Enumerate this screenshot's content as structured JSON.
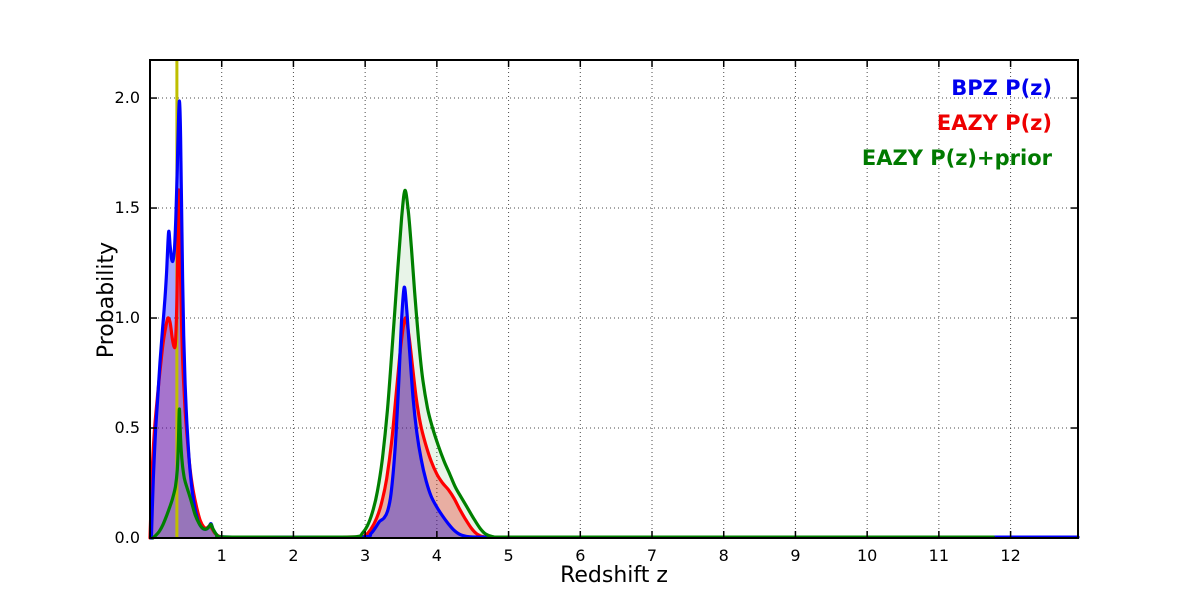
{
  "chart_data": {
    "type": "area",
    "title": "",
    "xlabel": "Redshift z",
    "ylabel": "Probability",
    "x_range": [
      0,
      12.94
    ],
    "y_range": [
      0,
      2.173
    ],
    "x_ticks": [
      "1",
      "2",
      "3",
      "4",
      "5",
      "6",
      "7",
      "8",
      "9",
      "10",
      "11",
      "12"
    ],
    "y_ticks": [
      "0.0",
      "0.5",
      "1.0",
      "1.5",
      "2.0"
    ],
    "grid": true,
    "grid_style": "dotted",
    "legend_position": "upper right",
    "legend": {
      "items": [
        {
          "label": "BPZ P(z)",
          "color": "#0000ee"
        },
        {
          "label": "EAZY P(z)",
          "color": "#ee0000"
        },
        {
          "label": "EAZY P(z)+prior",
          "color": "#007a00"
        }
      ]
    },
    "marker_line": {
      "z": 0.375,
      "color": "#bfbf00"
    },
    "series": [
      {
        "name": "EAZY P(z)",
        "color": "#ff0000",
        "fill_opacity": 0.3,
        "points": [
          [
            0.0,
            0
          ],
          [
            0.01,
            0.1
          ],
          [
            0.03,
            0.3
          ],
          [
            0.06,
            0.48
          ],
          [
            0.1,
            0.63
          ],
          [
            0.14,
            0.76
          ],
          [
            0.18,
            0.88
          ],
          [
            0.22,
            0.96
          ],
          [
            0.25,
            1.0
          ],
          [
            0.28,
            0.98
          ],
          [
            0.31,
            0.91
          ],
          [
            0.335,
            0.87
          ],
          [
            0.355,
            0.89
          ],
          [
            0.375,
            1.08
          ],
          [
            0.39,
            1.38
          ],
          [
            0.4,
            1.58
          ],
          [
            0.412,
            1.47
          ],
          [
            0.425,
            1.2
          ],
          [
            0.44,
            0.97
          ],
          [
            0.46,
            0.77
          ],
          [
            0.49,
            0.58
          ],
          [
            0.52,
            0.45
          ],
          [
            0.56,
            0.31
          ],
          [
            0.6,
            0.22
          ],
          [
            0.65,
            0.14
          ],
          [
            0.7,
            0.08
          ],
          [
            0.75,
            0.05
          ],
          [
            0.79,
            0.045
          ],
          [
            0.83,
            0.055
          ],
          [
            0.86,
            0.045
          ],
          [
            0.91,
            0.02
          ],
          [
            0.97,
            0.007
          ],
          [
            1.05,
            0.004
          ],
          [
            1.6,
            0.004
          ],
          [
            2.3,
            0.004
          ],
          [
            2.92,
            0.005
          ],
          [
            3.0,
            0.012
          ],
          [
            3.08,
            0.04
          ],
          [
            3.16,
            0.09
          ],
          [
            3.23,
            0.16
          ],
          [
            3.3,
            0.27
          ],
          [
            3.37,
            0.44
          ],
          [
            3.44,
            0.68
          ],
          [
            3.5,
            0.88
          ],
          [
            3.56,
            1.0
          ],
          [
            3.61,
            0.92
          ],
          [
            3.66,
            0.78
          ],
          [
            3.71,
            0.64
          ],
          [
            3.77,
            0.52
          ],
          [
            3.84,
            0.43
          ],
          [
            3.92,
            0.35
          ],
          [
            4.0,
            0.29
          ],
          [
            4.08,
            0.25
          ],
          [
            4.16,
            0.22
          ],
          [
            4.24,
            0.18
          ],
          [
            4.32,
            0.13
          ],
          [
            4.4,
            0.085
          ],
          [
            4.48,
            0.045
          ],
          [
            4.56,
            0.018
          ],
          [
            4.65,
            0.006
          ],
          [
            4.8,
            0.004
          ],
          [
            6,
            0.004
          ],
          [
            8,
            0.004
          ],
          [
            10,
            0.004
          ],
          [
            11.76,
            0.004
          ]
        ]
      },
      {
        "name": "BPZ P(z)",
        "color": "#0000ff",
        "fill_opacity": 0.35,
        "points": [
          [
            0.02,
            0
          ],
          [
            0.03,
            0.12
          ],
          [
            0.05,
            0.3
          ],
          [
            0.08,
            0.5
          ],
          [
            0.11,
            0.65
          ],
          [
            0.14,
            0.8
          ],
          [
            0.17,
            0.93
          ],
          [
            0.2,
            1.05
          ],
          [
            0.23,
            1.2
          ],
          [
            0.26,
            1.39
          ],
          [
            0.28,
            1.33
          ],
          [
            0.3,
            1.27
          ],
          [
            0.32,
            1.26
          ],
          [
            0.34,
            1.31
          ],
          [
            0.36,
            1.45
          ],
          [
            0.38,
            1.68
          ],
          [
            0.4,
            1.93
          ],
          [
            0.413,
            1.98
          ],
          [
            0.427,
            1.82
          ],
          [
            0.44,
            1.5
          ],
          [
            0.455,
            1.18
          ],
          [
            0.47,
            0.92
          ],
          [
            0.49,
            0.7
          ],
          [
            0.515,
            0.52
          ],
          [
            0.55,
            0.34
          ],
          [
            0.59,
            0.21
          ],
          [
            0.63,
            0.13
          ],
          [
            0.68,
            0.07
          ],
          [
            0.73,
            0.045
          ],
          [
            0.78,
            0.04
          ],
          [
            0.82,
            0.05
          ],
          [
            0.85,
            0.065
          ],
          [
            0.88,
            0.04
          ],
          [
            0.93,
            0.015
          ],
          [
            1.0,
            0.005
          ],
          [
            1.6,
            0.004
          ],
          [
            2.4,
            0.004
          ],
          [
            3.0,
            0.006
          ],
          [
            3.08,
            0.02
          ],
          [
            3.14,
            0.045
          ],
          [
            3.2,
            0.075
          ],
          [
            3.26,
            0.09
          ],
          [
            3.31,
            0.12
          ],
          [
            3.36,
            0.2
          ],
          [
            3.42,
            0.42
          ],
          [
            3.47,
            0.72
          ],
          [
            3.51,
            1.0
          ],
          [
            3.545,
            1.14
          ],
          [
            3.58,
            1.04
          ],
          [
            3.62,
            0.85
          ],
          [
            3.67,
            0.63
          ],
          [
            3.72,
            0.48
          ],
          [
            3.78,
            0.36
          ],
          [
            3.85,
            0.26
          ],
          [
            3.92,
            0.19
          ],
          [
            4.0,
            0.14
          ],
          [
            4.08,
            0.1
          ],
          [
            4.16,
            0.065
          ],
          [
            4.24,
            0.035
          ],
          [
            4.33,
            0.015
          ],
          [
            4.45,
            0.006
          ],
          [
            4.7,
            0.004
          ],
          [
            6,
            0.004
          ],
          [
            8,
            0.004
          ],
          [
            10,
            0.004
          ],
          [
            12,
            0.004
          ],
          [
            12.94,
            0.004
          ]
        ]
      },
      {
        "name": "EAZY P(z)+prior",
        "color": "#008000",
        "fill_opacity": 0.09,
        "points": [
          [
            0.04,
            0
          ],
          [
            0.08,
            0.012
          ],
          [
            0.13,
            0.03
          ],
          [
            0.18,
            0.06
          ],
          [
            0.23,
            0.1
          ],
          [
            0.28,
            0.145
          ],
          [
            0.32,
            0.185
          ],
          [
            0.355,
            0.235
          ],
          [
            0.38,
            0.31
          ],
          [
            0.395,
            0.42
          ],
          [
            0.408,
            0.585
          ],
          [
            0.42,
            0.5
          ],
          [
            0.435,
            0.4
          ],
          [
            0.455,
            0.325
          ],
          [
            0.48,
            0.27
          ],
          [
            0.51,
            0.235
          ],
          [
            0.55,
            0.195
          ],
          [
            0.59,
            0.15
          ],
          [
            0.63,
            0.105
          ],
          [
            0.68,
            0.068
          ],
          [
            0.73,
            0.045
          ],
          [
            0.78,
            0.04
          ],
          [
            0.82,
            0.05
          ],
          [
            0.85,
            0.062
          ],
          [
            0.88,
            0.04
          ],
          [
            0.93,
            0.015
          ],
          [
            1.0,
            0.005
          ],
          [
            1.6,
            0.004
          ],
          [
            2.4,
            0.004
          ],
          [
            2.88,
            0.006
          ],
          [
            2.96,
            0.022
          ],
          [
            3.03,
            0.055
          ],
          [
            3.1,
            0.115
          ],
          [
            3.17,
            0.21
          ],
          [
            3.24,
            0.36
          ],
          [
            3.31,
            0.58
          ],
          [
            3.38,
            0.88
          ],
          [
            3.45,
            1.2
          ],
          [
            3.51,
            1.46
          ],
          [
            3.555,
            1.58
          ],
          [
            3.6,
            1.49
          ],
          [
            3.645,
            1.32
          ],
          [
            3.69,
            1.12
          ],
          [
            3.745,
            0.9
          ],
          [
            3.8,
            0.73
          ],
          [
            3.87,
            0.59
          ],
          [
            3.94,
            0.5
          ],
          [
            4.02,
            0.42
          ],
          [
            4.1,
            0.35
          ],
          [
            4.18,
            0.29
          ],
          [
            4.26,
            0.23
          ],
          [
            4.34,
            0.185
          ],
          [
            4.43,
            0.135
          ],
          [
            4.52,
            0.085
          ],
          [
            4.6,
            0.045
          ],
          [
            4.68,
            0.018
          ],
          [
            4.78,
            0.006
          ],
          [
            4.95,
            0.004
          ],
          [
            6,
            0.004
          ],
          [
            8,
            0.004
          ],
          [
            10,
            0.004
          ],
          [
            11.76,
            0.004
          ]
        ]
      }
    ]
  }
}
